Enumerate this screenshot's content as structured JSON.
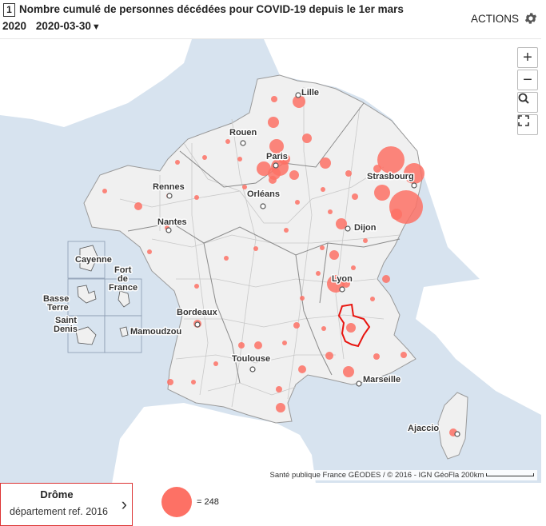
{
  "header": {
    "num": "1",
    "title": "Nombre cumulé de personnes décédées pour COVID-19 depuis le 1er mars",
    "title_year": "2020",
    "date": "2020-03-30",
    "actions_label": "ACTIONS"
  },
  "map": {
    "colors": {
      "sea": "#d7e3ef",
      "land": "#f0f0f0",
      "bubble": "#fd7165",
      "selected": "#e8140f"
    },
    "cities": {
      "lille": "Lille",
      "rouen": "Rouen",
      "paris": "Paris",
      "strasbourg": "Strasbourg",
      "rennes": "Rennes",
      "orleans": "Orléans",
      "nantes": "Nantes",
      "dijon": "Dijon",
      "lyon": "Lyon",
      "bordeaux": "Bordeaux",
      "toulouse": "Toulouse",
      "marseille": "Marseille",
      "ajaccio": "Ajaccio"
    },
    "insets": {
      "cayenne": "Cayenne",
      "fort_de_france": [
        "Fort",
        "de",
        "France"
      ],
      "basse_terre": [
        "Basse",
        "Terre"
      ],
      "saint_denis": [
        "Saint",
        "Denis"
      ],
      "mamoudzou": "Mamoudzou"
    },
    "zoom_in": "+",
    "zoom_out": "−",
    "attribution": "Santé publique France GÉODES / © 2016 - IGN GéoFla",
    "scale": "200km"
  },
  "footer": {
    "territory_name": "Drôme",
    "territory_ref": "département ref. 2016",
    "legend_value": "= 248"
  }
}
